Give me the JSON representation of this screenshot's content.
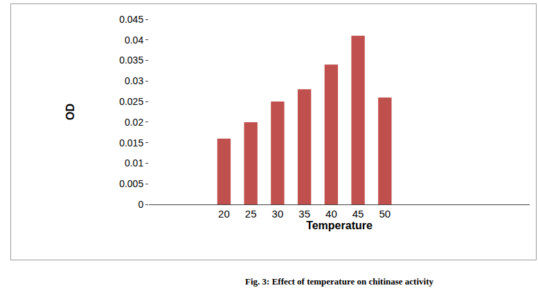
{
  "chart_data": {
    "type": "bar",
    "title": "Fig. 3: Effect of temperature on chitinase activity",
    "x_label": "Temperature",
    "y_label": "OD",
    "x": [
      20,
      25,
      30,
      35,
      40,
      45,
      50
    ],
    "values": [
      0.016,
      0.02,
      0.025,
      0.028,
      0.034,
      0.041,
      0.026
    ],
    "color": "#c0504d",
    "xlim": [
      6,
      77
    ],
    "xticks": [
      20,
      25,
      30,
      35,
      40,
      45,
      50
    ],
    "ylim": [
      0,
      0.045
    ],
    "yticks": [
      0,
      0.005,
      0.01,
      0.015,
      0.02,
      0.025,
      0.03,
      0.035,
      0.04,
      0.045
    ],
    "grid": false
  }
}
